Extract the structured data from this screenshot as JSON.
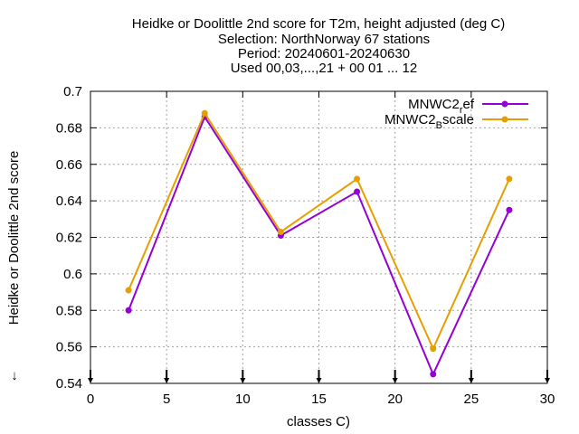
{
  "chart_data": {
    "type": "line",
    "title_lines": [
      "Heidke or Doolittle 2nd score  for T2m, height adjusted (deg C)",
      "Selection: NorthNorway     67 stations",
      "Period: 20240601-20240630",
      "Used 00,03,...,21 + 00 01 ... 12"
    ],
    "xlabel": "classes C)",
    "ylabel": "Heidke or Doolittle 2nd score",
    "xlim": [
      0,
      30
    ],
    "ylim": [
      0.54,
      0.7
    ],
    "xticks": [
      0,
      5,
      10,
      15,
      20,
      25,
      30
    ],
    "xtick_labels": [
      "0",
      "5",
      "10",
      "15",
      "20",
      "25",
      "30"
    ],
    "yticks": [
      0.54,
      0.56,
      0.58,
      0.6,
      0.62,
      0.64,
      0.66,
      0.68,
      0.7
    ],
    "ytick_labels": [
      "0.54",
      "0.56",
      "0.58",
      "0.6",
      "0.62",
      "0.64",
      "0.66",
      "0.68",
      "0.7"
    ],
    "grid": true,
    "legend_position": "top-right",
    "x": [
      2.5,
      7.5,
      12.5,
      17.5,
      22.5,
      27.5
    ],
    "series": [
      {
        "name_main": "MNWC2",
        "name_sub": "r",
        "name_tail": "ef",
        "color": "#9400d3",
        "values": [
          0.58,
          0.686,
          0.621,
          0.645,
          0.545,
          0.635
        ]
      },
      {
        "name_main": "MNWC2",
        "name_sub": "B",
        "name_tail": "scale",
        "color": "#e69f00",
        "values": [
          0.591,
          0.688,
          0.623,
          0.652,
          0.559,
          0.652
        ]
      }
    ],
    "count_marker_x": [
      0,
      5,
      10,
      15,
      20,
      25,
      30
    ]
  }
}
